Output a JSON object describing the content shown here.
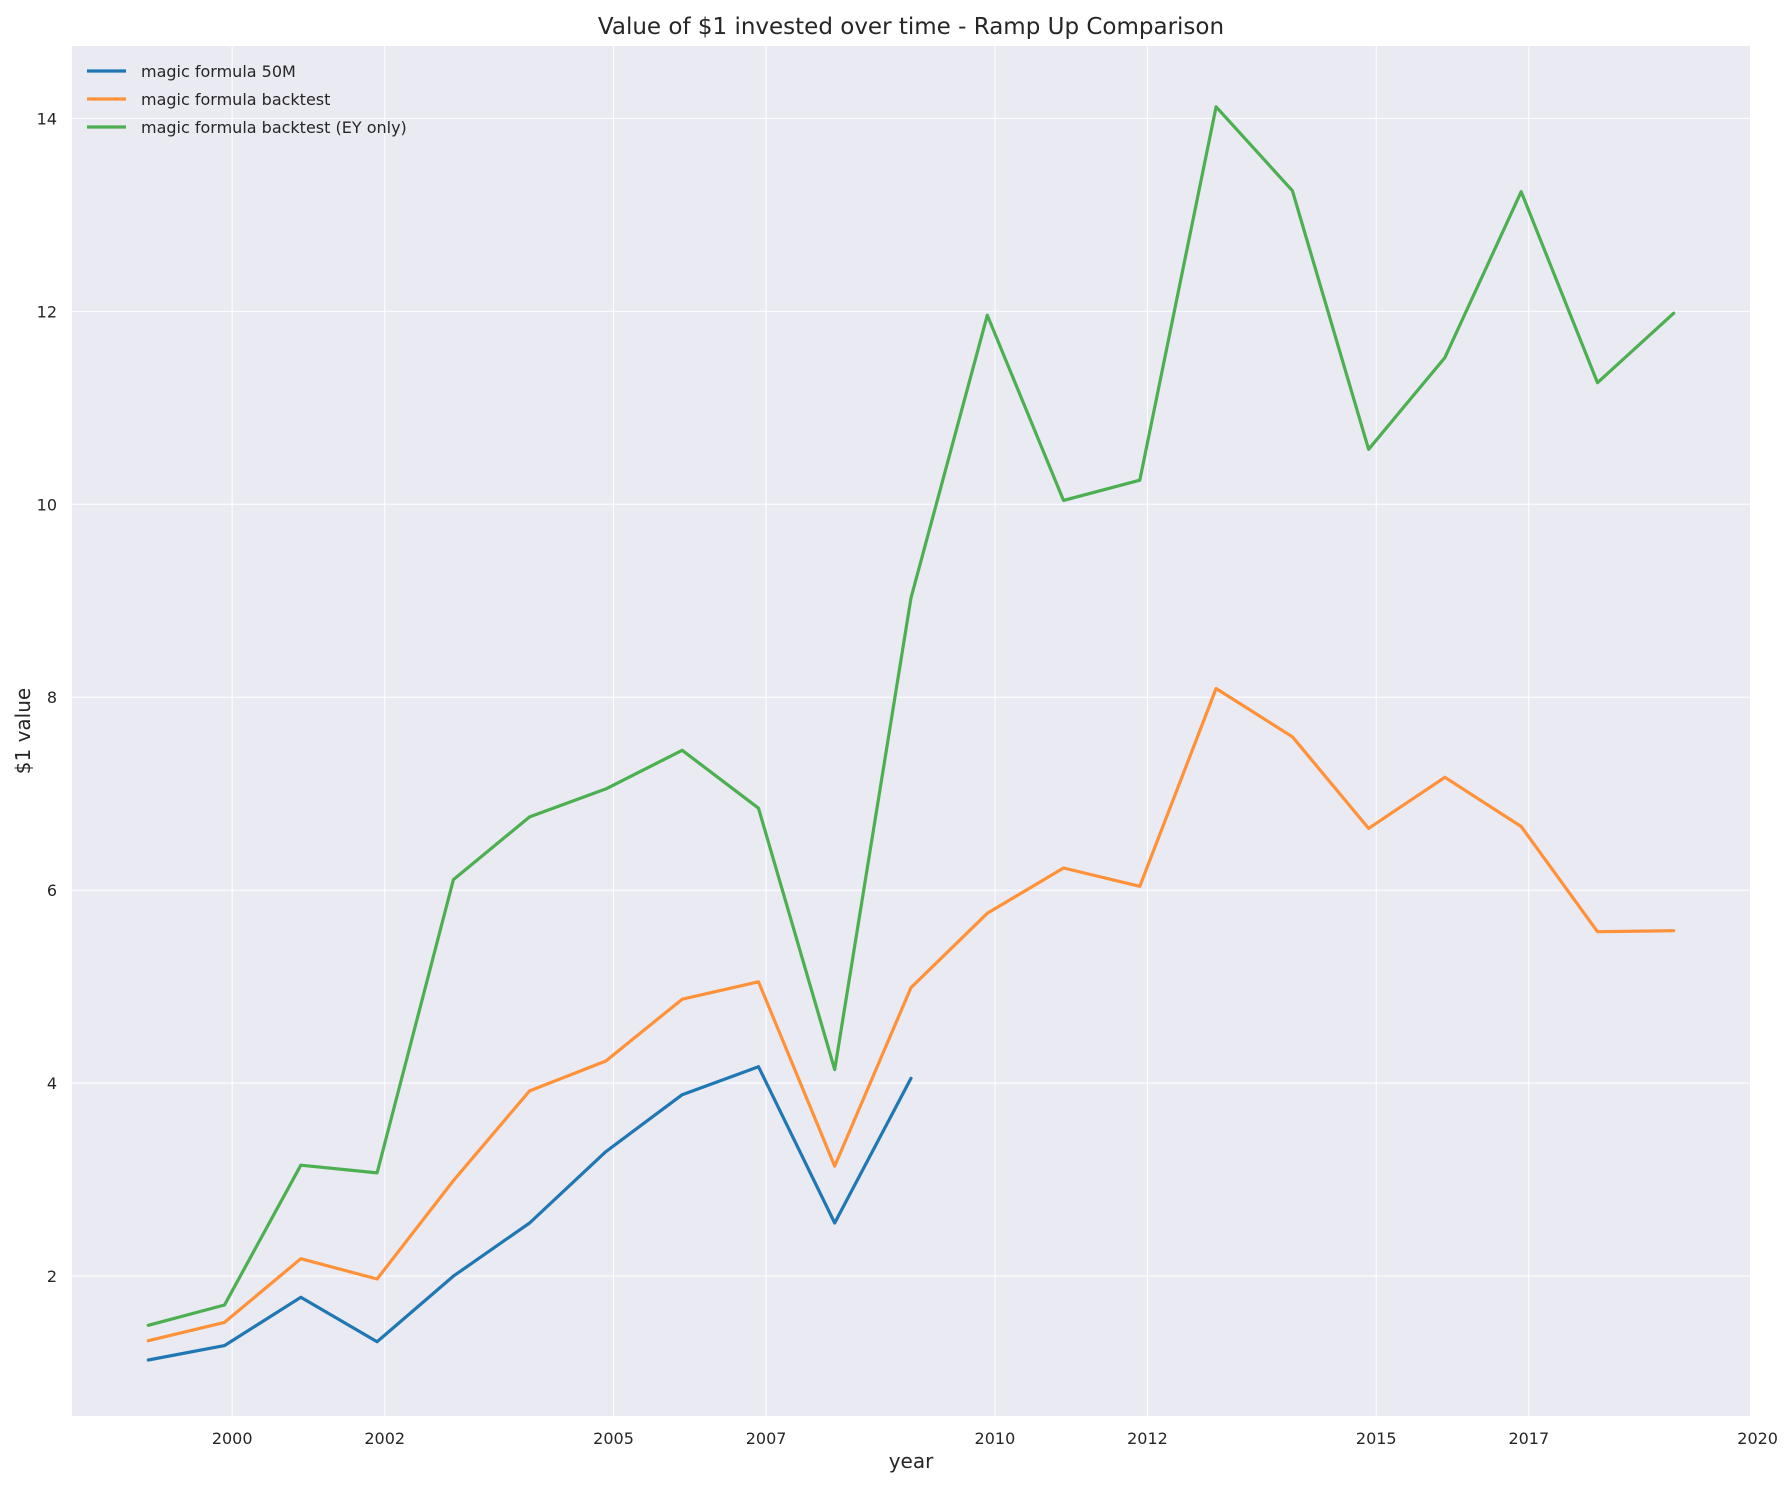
{
  "chart_data": {
    "type": "line",
    "title": "Value of $1 invested over time - Ramp Up Comparison",
    "xlabel": "year",
    "ylabel": "$1 value",
    "x_ticks": [
      "2000",
      "2002",
      "2005",
      "2007",
      "2010",
      "2012",
      "2015",
      "2017",
      "2020"
    ],
    "y_ticks": [
      "2",
      "4",
      "6",
      "8",
      "10",
      "12",
      "14"
    ],
    "xlim": [
      1997.9,
      2019.9
    ],
    "ylim": [
      0.55,
      14.75
    ],
    "grid": true,
    "legend_position": "top-left",
    "x": [
      1998.9,
      1999.9,
      2000.9,
      2001.9,
      2002.9,
      2003.9,
      2004.9,
      2005.9,
      2006.9,
      2007.9,
      2008.9,
      2009.9,
      2010.9,
      2011.9,
      2012.9,
      2013.9,
      2014.9,
      2015.9,
      2016.9,
      2017.9,
      2018.9
    ],
    "series": [
      {
        "name": "magic formula 50M",
        "color": "#1f77b4",
        "values": [
          1.13,
          1.28,
          1.78,
          1.32,
          2.0,
          2.55,
          3.29,
          3.88,
          4.17,
          2.55,
          4.05,
          null,
          null,
          null,
          null,
          null,
          null,
          null,
          null,
          null,
          null
        ]
      },
      {
        "name": "magic formula backtest",
        "color": "#ff9138",
        "values": [
          1.33,
          1.52,
          2.18,
          1.97,
          2.99,
          3.92,
          4.23,
          4.87,
          5.05,
          3.14,
          4.99,
          5.76,
          6.23,
          6.04,
          8.09,
          7.59,
          6.64,
          7.17,
          6.66,
          5.57,
          5.58
        ]
      },
      {
        "name": "magic formula backtest (EY only)",
        "color": "#4caf50",
        "values": [
          1.49,
          1.7,
          3.15,
          3.07,
          6.11,
          6.76,
          7.05,
          7.45,
          6.85,
          4.14,
          9.03,
          11.96,
          10.04,
          10.25,
          14.12,
          13.25,
          10.57,
          11.52,
          13.24,
          11.26,
          11.98
        ]
      }
    ]
  }
}
